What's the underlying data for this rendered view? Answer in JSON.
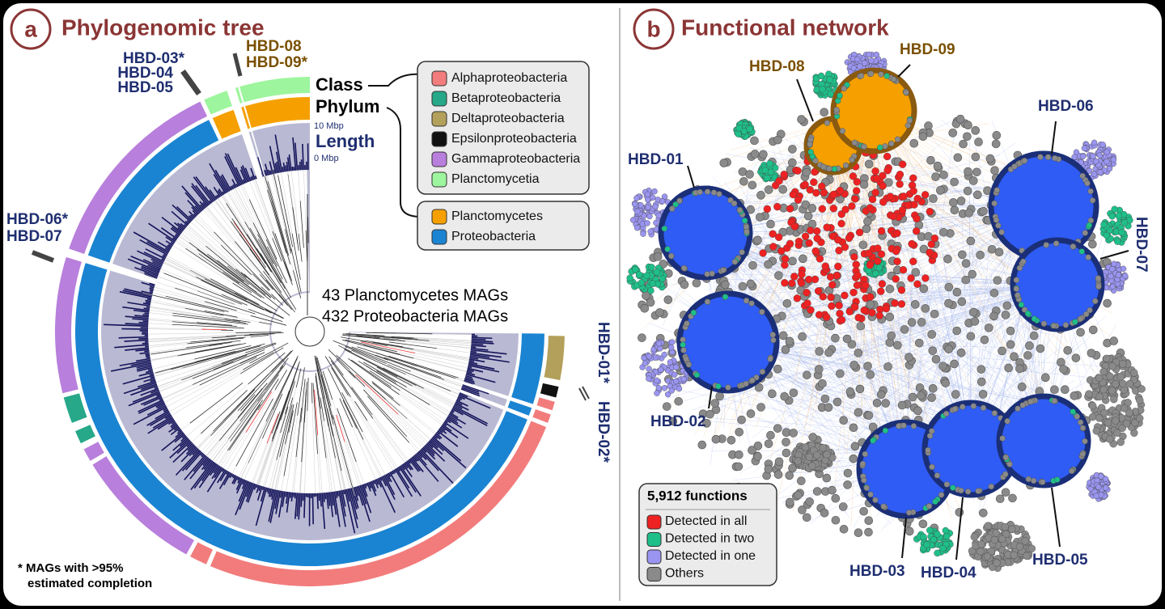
{
  "panel_a": {
    "letter": "a",
    "title": "Phylogenomic tree",
    "ring_labels": {
      "class": "Class",
      "phylum": "Phylum",
      "length": "Length",
      "length_max": "10 Mbp",
      "length_min": "0 Mbp"
    },
    "class_legend": [
      {
        "label": "Alphaproteobacteria",
        "color": "#f27c7c"
      },
      {
        "label": "Betaproteobacteria",
        "color": "#26a889"
      },
      {
        "label": "Deltaproteobacteria",
        "color": "#b3a05a"
      },
      {
        "label": "Epsilonproteobacteria",
        "color": "#111111"
      },
      {
        "label": "Gammaproteobacteria",
        "color": "#b87fdc"
      },
      {
        "label": "Planctomycetia",
        "color": "#9df59d"
      }
    ],
    "phylum_legend": [
      {
        "label": "Planctomycetes",
        "color": "#f5a000"
      },
      {
        "label": "Proteobacteria",
        "color": "#1a84d2"
      }
    ],
    "counts": [
      "43 Planctomycetes MAGs",
      "432 Proteobacteria MAGs"
    ],
    "hbd_labels": [
      "HBD-03*",
      "HBD-04",
      "HBD-05",
      "HBD-08",
      "HBD-09*",
      "HBD-06*",
      "HBD-07",
      "HBD-01*",
      "HBD-02*"
    ],
    "footnote": [
      "* MAGs with >95%",
      "estimated completion"
    ]
  },
  "panel_b": {
    "letter": "b",
    "title": "Functional network",
    "hubs": [
      "HBD-01",
      "HBD-02",
      "HBD-03",
      "HBD-04",
      "HBD-05",
      "HBD-06",
      "HBD-07",
      "HBD-08",
      "HBD-09"
    ],
    "legend_title": "5,912 functions",
    "legend": [
      {
        "label": "Detected in all",
        "color": "#ee2222"
      },
      {
        "label": "Detected in two",
        "color": "#1fbf8a"
      },
      {
        "label": "Detected in one",
        "color": "#9a95f0"
      },
      {
        "label": "Others",
        "color": "#8a8a8a"
      }
    ]
  }
}
